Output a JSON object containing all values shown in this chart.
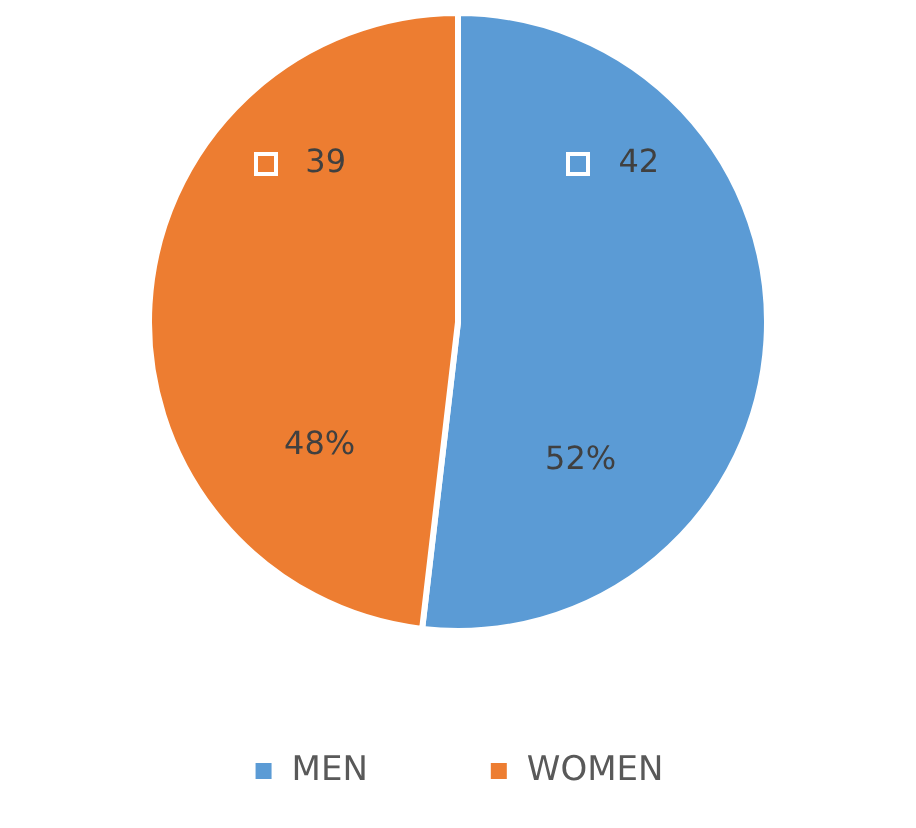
{
  "chart_data": {
    "type": "pie",
    "categories": [
      "MEN",
      "WOMEN"
    ],
    "values": [
      42,
      39
    ],
    "colors": [
      "#5b9bd5",
      "#ed7d31"
    ],
    "data_labels": true,
    "annotations": [
      {
        "text": "52%",
        "x": "MEN"
      },
      {
        "text": "48%",
        "x": "WOMEN"
      }
    ],
    "legend": "bottom"
  }
}
